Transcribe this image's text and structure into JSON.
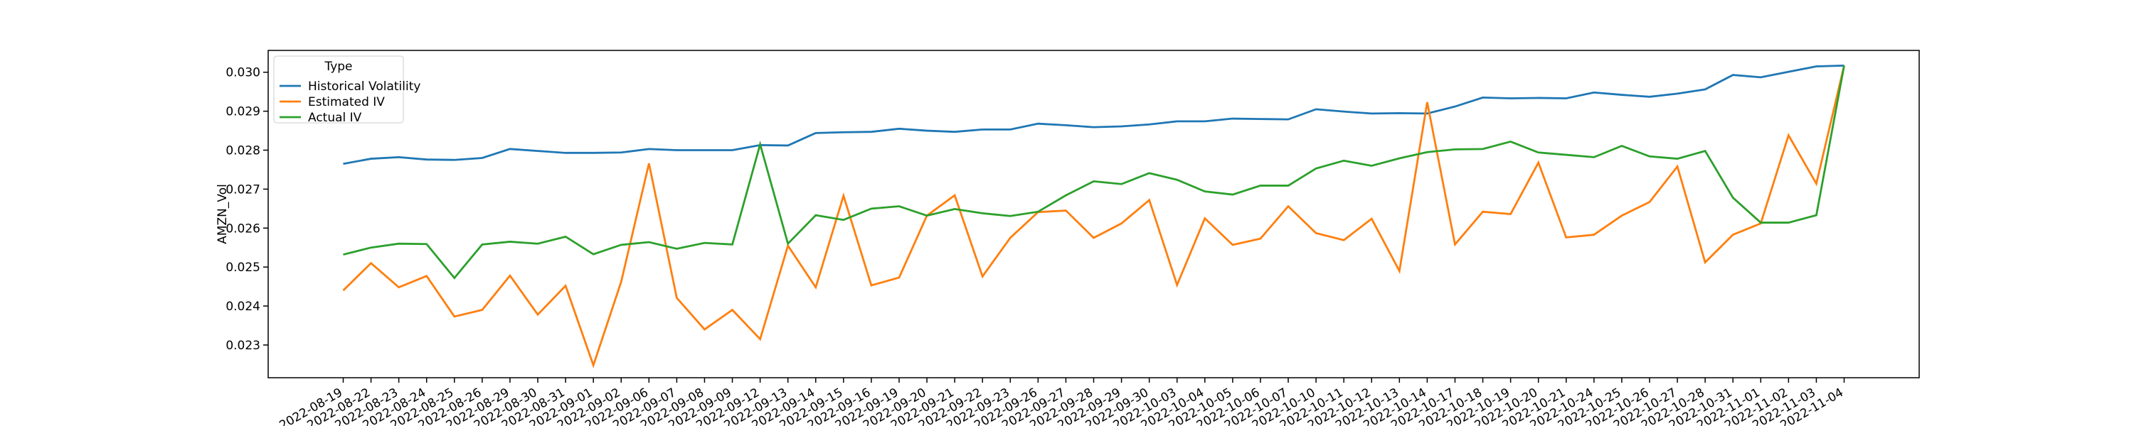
{
  "chart_data": {
    "type": "line",
    "ylabel": "AMZN_Vol",
    "legend_title": "Type",
    "legend": "upper left",
    "categories": [
      "2022-08-19",
      "2022-08-22",
      "2022-08-23",
      "2022-08-24",
      "2022-08-25",
      "2022-08-26",
      "2022-08-29",
      "2022-08-30",
      "2022-08-31",
      "2022-09-01",
      "2022-09-02",
      "2022-09-06",
      "2022-09-07",
      "2022-09-08",
      "2022-09-09",
      "2022-09-12",
      "2022-09-13",
      "2022-09-14",
      "2022-09-15",
      "2022-09-16",
      "2022-09-19",
      "2022-09-20",
      "2022-09-21",
      "2022-09-22",
      "2022-09-23",
      "2022-09-26",
      "2022-09-27",
      "2022-09-28",
      "2022-09-29",
      "2022-09-30",
      "2022-10-03",
      "2022-10-04",
      "2022-10-05",
      "2022-10-06",
      "2022-10-07",
      "2022-10-10",
      "2022-10-11",
      "2022-10-12",
      "2022-10-13",
      "2022-10-14",
      "2022-10-17",
      "2022-10-18",
      "2022-10-19",
      "2022-10-20",
      "2022-10-21",
      "2022-10-24",
      "2022-10-25",
      "2022-10-26",
      "2022-10-27",
      "2022-10-28",
      "2022-10-31",
      "2022-11-01",
      "2022-11-02",
      "2022-11-03",
      "2022-11-04"
    ],
    "series": [
      {
        "name": "Historical Volatility",
        "color": "#1f77b4",
        "values": [
          0.02765,
          0.02778,
          0.02782,
          0.02776,
          0.02775,
          0.0278,
          0.02803,
          0.02798,
          0.02793,
          0.02793,
          0.02794,
          0.02803,
          0.028,
          0.028,
          0.028,
          0.02813,
          0.02812,
          0.02844,
          0.02846,
          0.02847,
          0.02855,
          0.0285,
          0.02847,
          0.02853,
          0.02853,
          0.02868,
          0.02864,
          0.02859,
          0.02861,
          0.02866,
          0.02874,
          0.02874,
          0.02881,
          0.0288,
          0.02879,
          0.02905,
          0.02899,
          0.02894,
          0.02895,
          0.02894,
          0.02912,
          0.02935,
          0.02933,
          0.02934,
          0.02933,
          0.02948,
          0.02942,
          0.02937,
          0.02945,
          0.02956,
          0.02993,
          0.02987,
          0.03001,
          0.03015,
          0.03017
        ]
      },
      {
        "name": "Estimated IV",
        "color": "#ff7f0e",
        "values": [
          0.0244,
          0.0251,
          0.02448,
          0.02477,
          0.02373,
          0.0239,
          0.02478,
          0.02378,
          0.02452,
          0.02248,
          0.02462,
          0.02766,
          0.02421,
          0.0234,
          0.0239,
          0.02315,
          0.02555,
          0.02448,
          0.02683,
          0.02453,
          0.02473,
          0.02632,
          0.02684,
          0.02476,
          0.02575,
          0.02641,
          0.02645,
          0.02575,
          0.02612,
          0.02672,
          0.02454,
          0.02625,
          0.02557,
          0.02573,
          0.02656,
          0.02587,
          0.02569,
          0.02624,
          0.0249,
          0.02923,
          0.02558,
          0.02642,
          0.02636,
          0.02768,
          0.02576,
          0.02583,
          0.02632,
          0.02667,
          0.02758,
          0.02512,
          0.02583,
          0.02612,
          0.02838,
          0.02714,
          0.03017
        ]
      },
      {
        "name": "Actual IV",
        "color": "#2ca02c",
        "values": [
          0.02532,
          0.0255,
          0.0256,
          0.02559,
          0.02472,
          0.02558,
          0.02565,
          0.0256,
          0.02578,
          0.02533,
          0.02557,
          0.02564,
          0.02547,
          0.02562,
          0.02558,
          0.02815,
          0.0256,
          0.02633,
          0.02621,
          0.0265,
          0.02656,
          0.02632,
          0.02649,
          0.02638,
          0.02631,
          0.02642,
          0.02684,
          0.0272,
          0.02713,
          0.02741,
          0.02724,
          0.02694,
          0.02686,
          0.02709,
          0.02709,
          0.02753,
          0.02773,
          0.0276,
          0.02779,
          0.02795,
          0.02802,
          0.02803,
          0.02822,
          0.02794,
          0.02788,
          0.02782,
          0.02811,
          0.02784,
          0.02778,
          0.02798,
          0.02678,
          0.02614,
          0.02614,
          0.02633,
          0.03017
        ]
      }
    ],
    "ylim": [
      0.02216,
      0.03056
    ],
    "yticks": [
      0.023,
      0.024,
      0.025,
      0.026,
      0.027,
      0.028,
      0.029,
      {
        "value": 0.03,
        "label": "0.030"
      }
    ],
    "grid": false
  }
}
